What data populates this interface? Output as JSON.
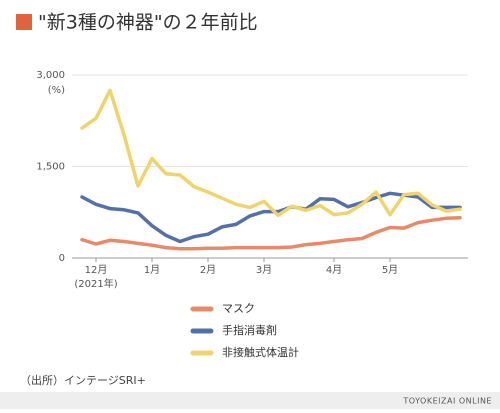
{
  "chart_data": {
    "type": "line",
    "title": "\"新3種の神器\"の２年前比",
    "y_unit": "(%)",
    "x_note": "(2021年)",
    "source": "（出所）インテージSRI+",
    "publisher": "TOYOKEIZAI ONLINE",
    "categories": [
      null,
      "12月",
      null,
      null,
      null,
      "1月",
      null,
      null,
      null,
      "2月",
      null,
      null,
      null,
      "3月",
      null,
      null,
      null,
      null,
      "4月",
      null,
      null,
      null,
      "5月",
      null,
      null,
      null,
      null,
      null
    ],
    "series": [
      {
        "name": "マスク",
        "color": "#e8896a",
        "values": [
          300,
          230,
          290,
          270,
          240,
          210,
          170,
          150,
          150,
          160,
          160,
          170,
          170,
          170,
          170,
          180,
          220,
          240,
          270,
          300,
          320,
          420,
          500,
          490,
          580,
          620,
          650,
          660
        ]
      },
      {
        "name": "手指消毒剤",
        "color": "#5470a8",
        "values": [
          1000,
          880,
          810,
          790,
          740,
          530,
          370,
          270,
          350,
          390,
          510,
          550,
          690,
          760,
          760,
          840,
          800,
          970,
          960,
          840,
          910,
          990,
          1060,
          1030,
          1000,
          830,
          830,
          830
        ]
      },
      {
        "name": "非接触式体温計",
        "color": "#f0d36b",
        "values": [
          2130,
          2290,
          2750,
          2020,
          1180,
          1630,
          1380,
          1360,
          1170,
          1080,
          980,
          880,
          830,
          930,
          700,
          850,
          780,
          860,
          710,
          740,
          880,
          1080,
          710,
          1040,
          1060,
          870,
          770,
          800
        ]
      }
    ],
    "ylim": [
      0,
      3000
    ],
    "yticks": [
      0,
      {
        "value": 1500,
        "label": "1,500"
      },
      {
        "value": 3000,
        "label": "3,000"
      }
    ],
    "grid": true
  }
}
